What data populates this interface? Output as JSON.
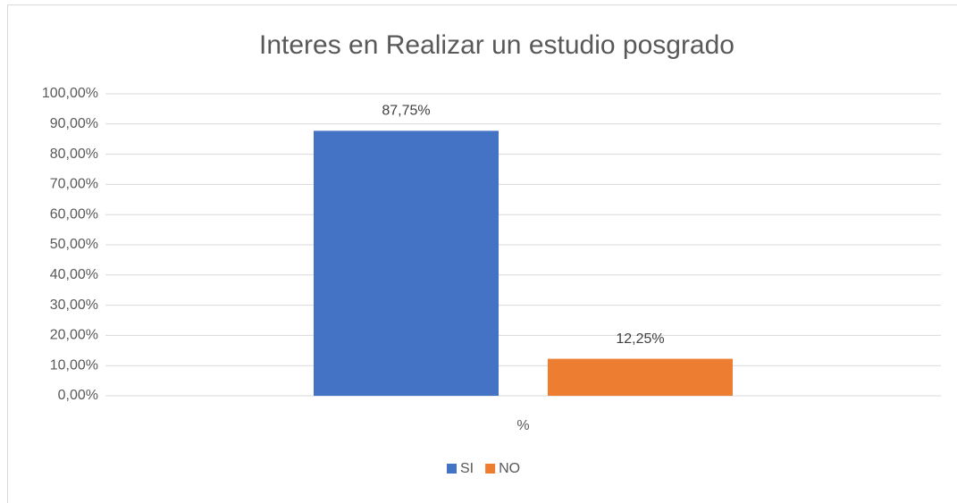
{
  "chart_data": {
    "type": "bar",
    "title": "Interes en Realizar un estudio posgrado",
    "categories": [
      "%"
    ],
    "series": [
      {
        "name": "SI",
        "color": "#4472c4",
        "values": [
          87.75
        ],
        "value_labels": [
          "87,75%"
        ]
      },
      {
        "name": "NO",
        "color": "#ed7d31",
        "values": [
          12.25
        ],
        "value_labels": [
          "12,25%"
        ]
      }
    ],
    "ylim": [
      0,
      100
    ],
    "yticks": [
      {
        "value": 0,
        "label": "0,00%"
      },
      {
        "value": 10,
        "label": "10,00%"
      },
      {
        "value": 20,
        "label": "20,00%"
      },
      {
        "value": 30,
        "label": "30,00%"
      },
      {
        "value": 40,
        "label": "40,00%"
      },
      {
        "value": 50,
        "label": "50,00%"
      },
      {
        "value": 60,
        "label": "60,00%"
      },
      {
        "value": 70,
        "label": "70,00%"
      },
      {
        "value": 80,
        "label": "80,00%"
      },
      {
        "value": 90,
        "label": "90,00%"
      },
      {
        "value": 100,
        "label": "100,00%"
      }
    ],
    "grid": true,
    "legend": "bottom"
  }
}
